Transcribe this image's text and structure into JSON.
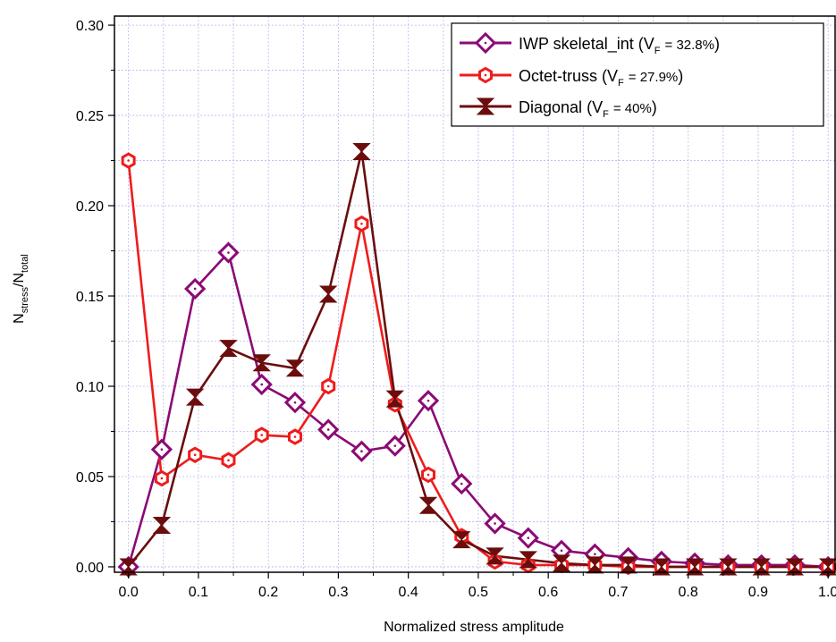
{
  "chart_data": {
    "type": "line",
    "xlabel": "Normalized stress amplitude",
    "ylabel": {
      "base": "N",
      "num_sub": "stress",
      "sep": "/",
      "den_base": "N",
      "den_sub": "total"
    },
    "xlim": [
      -0.02,
      1.01
    ],
    "ylim": [
      -0.003,
      0.305
    ],
    "xticks": [
      0.0,
      0.1,
      0.2,
      0.3,
      0.4,
      0.5,
      0.6,
      0.7,
      0.8,
      0.9,
      1.0
    ],
    "xtick_labels": [
      "0.0",
      "0.1",
      "0.2",
      "0.3",
      "0.4",
      "0.5",
      "0.6",
      "0.7",
      "0.8",
      "0.9",
      "1.0"
    ],
    "yticks": [
      0.0,
      0.05,
      0.1,
      0.15,
      0.2,
      0.25,
      0.3
    ],
    "ytick_labels": [
      "0.00",
      "0.05",
      "0.10",
      "0.15",
      "0.20",
      "0.25",
      "0.30"
    ],
    "grid": true,
    "legend_position": "top-right",
    "x": [
      0.0,
      0.0476,
      0.0952,
      0.1429,
      0.1905,
      0.2381,
      0.2857,
      0.3333,
      0.381,
      0.4286,
      0.4762,
      0.5238,
      0.5714,
      0.619,
      0.6667,
      0.7143,
      0.7619,
      0.8095,
      0.8571,
      0.9048,
      0.9524,
      1.0
    ],
    "series": [
      {
        "legend_name": "IWP skeletal_int",
        "legend_vf": "32.8%",
        "color": "#8b0a74",
        "marker": "diamond",
        "values": [
          0.0,
          0.065,
          0.154,
          0.174,
          0.101,
          0.091,
          0.076,
          0.064,
          0.067,
          0.092,
          0.046,
          0.024,
          0.016,
          0.009,
          0.007,
          0.005,
          0.003,
          0.002,
          0.001,
          0.001,
          0.001,
          0.0
        ]
      },
      {
        "legend_name": "Octet-truss",
        "legend_vf": "27.9%",
        "color": "#ee1c1c",
        "marker": "hexagon",
        "values": [
          0.225,
          0.049,
          0.062,
          0.059,
          0.073,
          0.072,
          0.1,
          0.19,
          0.09,
          0.051,
          0.017,
          0.003,
          0.001,
          0.001,
          0.001,
          0.0,
          0.0,
          0.0,
          0.0,
          0.0,
          0.0,
          0.0
        ]
      },
      {
        "legend_name": "Diagonal",
        "legend_vf": "40%",
        "color": "#6b0d0d",
        "marker": "hourglass",
        "values": [
          0.0,
          0.023,
          0.094,
          0.121,
          0.113,
          0.11,
          0.151,
          0.23,
          0.093,
          0.034,
          0.015,
          0.006,
          0.004,
          0.002,
          0.001,
          0.001,
          0.0,
          0.0,
          0.0,
          0.0,
          0.0,
          0.0
        ]
      }
    ],
    "legend_vf_symbol": "V",
    "legend_vf_sub": "F",
    "legend_vf_eq": "="
  }
}
